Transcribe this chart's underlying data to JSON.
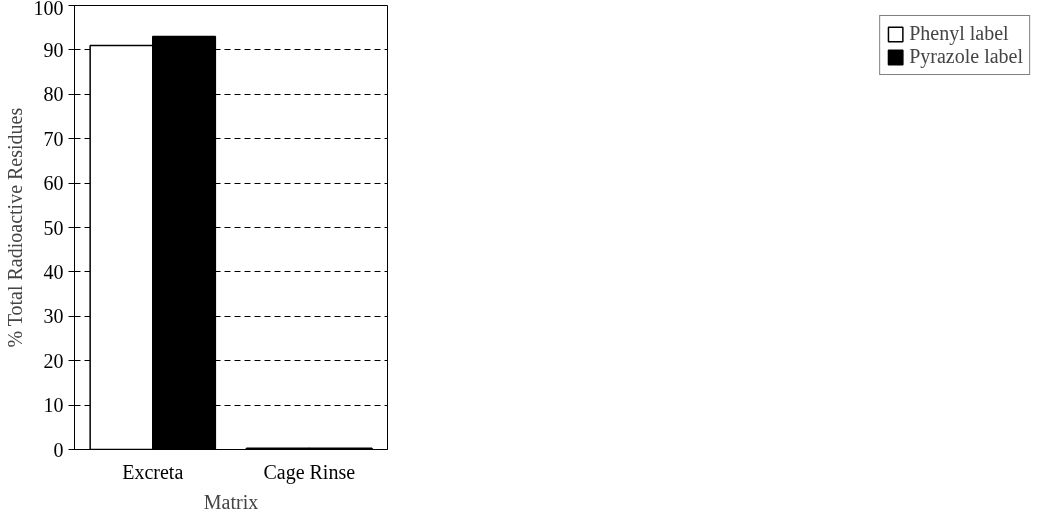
{
  "chart_data": {
    "type": "bar",
    "xlabel": "Matrix",
    "ylabel": "% Total Radioactive Residues",
    "categories": [
      "Excreta",
      "Cage Rinse"
    ],
    "series": [
      {
        "name": "Phenyl label",
        "color": "#ffffff",
        "values": [
          91,
          0.3
        ]
      },
      {
        "name": "Pyrazole label",
        "color": "#000000",
        "values": [
          93,
          0.3
        ]
      }
    ],
    "ylim": [
      0,
      100
    ],
    "yticks": [
      0,
      10,
      20,
      30,
      40,
      50,
      60,
      70,
      80,
      90,
      100
    ],
    "grid": "y",
    "legend": "right"
  }
}
